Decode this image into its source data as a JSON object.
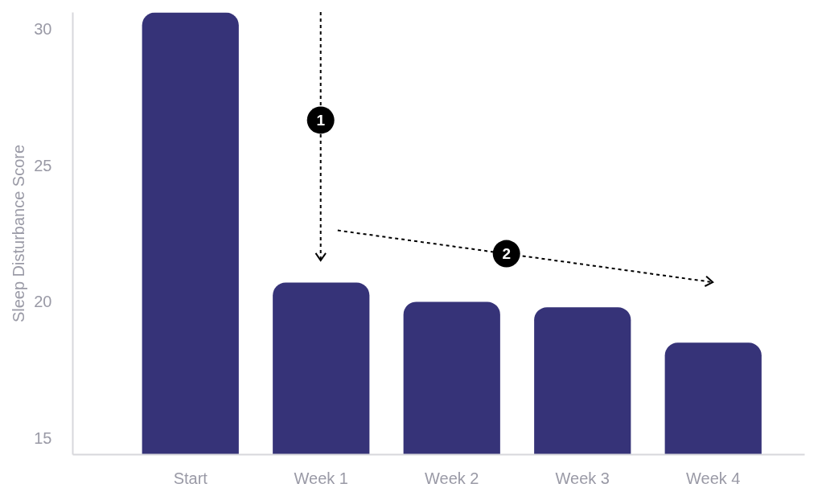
{
  "chart_data": {
    "type": "bar",
    "ylabel": "Sleep Disturbance Score",
    "categories": [
      "Start",
      "Week 1",
      "Week 2",
      "Week 3",
      "Week 4"
    ],
    "values": [
      30.6,
      20.7,
      20.0,
      19.8,
      18.5
    ],
    "color": "#363378",
    "ylim": [
      14.4,
      30.6
    ],
    "yticks": [
      15,
      20,
      25,
      30
    ],
    "grid": false,
    "annotations": [
      "1",
      "2"
    ]
  }
}
